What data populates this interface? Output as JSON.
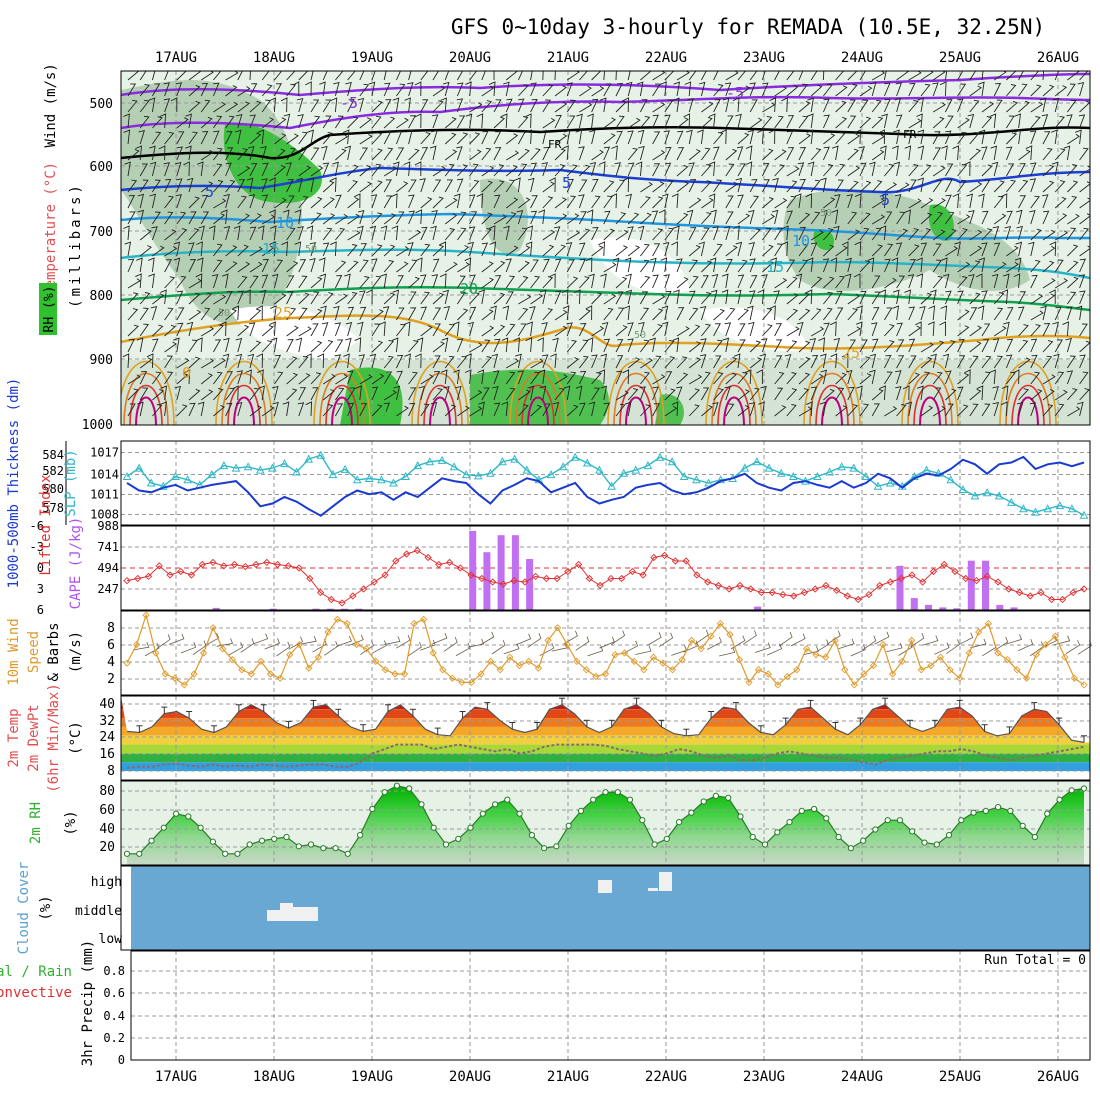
{
  "title": "GFS 0~10day 3-hourly for REMADA (10.5E, 32.25N)",
  "dates": [
    "17AUG",
    "18AUG",
    "19AUG",
    "20AUG",
    "21AUG",
    "22AUG",
    "23AUG",
    "24AUG",
    "25AUG",
    "26AUG"
  ],
  "colors": {
    "purple": "#8a2be2",
    "blue": "#1c3fd6",
    "cyan": "#28b4c8",
    "green": "#10a050",
    "orange": "#e0a020",
    "red": "#e03030",
    "magenta": "#c00080",
    "rh_light": "#e6f2e6",
    "rh_mid": "#a8c8a8",
    "rh_green": "#40c040",
    "cloud": "#6aa8d4",
    "cape": "#c070f0",
    "slp": "#30b8c8",
    "thick": "#1a3ad0",
    "li": "#e03030",
    "wind": "#e09a2a"
  },
  "panels": {
    "upper": {
      "ylabel_wind": "Wind (m/s)",
      "ylabel_temp": "Temperature (°C)",
      "ylabel_rh": "RH (%)",
      "ylabel_mb": "(millibars)",
      "levels": [
        "500",
        "600",
        "700",
        "800",
        "900",
        "1000"
      ],
      "contour_labels": [
        "-5",
        "-5",
        "FR",
        "FR",
        "5",
        "5",
        "5",
        "10",
        "10",
        "15",
        "15",
        "20",
        "25",
        "25",
        "0",
        "0",
        "50",
        "50",
        "50",
        "50"
      ]
    },
    "slp": {
      "ylabel_thick": "1000-500mb Thickness (dm)",
      "ylabel_slp": "SLP (mb)",
      "left_ticks": [
        "584",
        "582",
        "580",
        "578"
      ],
      "right_ticks": [
        "1017",
        "1014",
        "1011",
        "1008"
      ]
    },
    "cape": {
      "ylabel_li": "Lifted Index",
      "ylabel_cape": "CAPE (J/kg)",
      "li_ticks": [
        "-6",
        "-3",
        "0",
        "3",
        "6"
      ],
      "cape_ticks": [
        "988",
        "741",
        "494",
        "247"
      ]
    },
    "wind": {
      "ylabel": "10m Wind Speed & Barbs (m/s)",
      "ylabel_a": "10m Wind",
      "ylabel_b": "Speed",
      "ylabel_c": "& Barbs",
      "ylabel_d": "(m/s)",
      "ticks": [
        "8",
        "6",
        "4",
        "2"
      ]
    },
    "temp": {
      "ylabel_a": "2m Temp",
      "ylabel_b": "2m DewPt",
      "ylabel_c": "(6hr Min/Max)",
      "ylabel_d": "(°C)",
      "ticks": [
        "40",
        "32",
        "24",
        "16",
        "8"
      ]
    },
    "rh": {
      "ylabel_a": "2m RH",
      "ylabel_b": "(%)",
      "ticks": [
        "80",
        "60",
        "40",
        "20"
      ]
    },
    "cloud": {
      "ylabel_a": "Cloud Cover",
      "ylabel_b": "(%)",
      "ticks": [
        "high",
        "middle",
        "low"
      ]
    },
    "precip": {
      "ylabel_a": "Total / Rain",
      "ylabel_b": "Convective",
      "ylabel_c": "3hr Precip (mm)",
      "ticks": [
        "0.8",
        "0.6",
        "0.4",
        "0.2",
        "0"
      ],
      "run_total": "Run Total = 0"
    }
  },
  "chart_data": [
    {
      "type": "line",
      "title": "1000-500mb Thickness (dm) / SLP (mb)",
      "series": [
        {
          "name": "SLP (mb)",
          "axis": "right",
          "ylim": [
            1006,
            1019
          ],
          "values": [
            1013.5,
            1014.8,
            1012.5,
            1012.0,
            1013.5,
            1013.0,
            1012.2,
            1013.8,
            1015.2,
            1014.8,
            1015.0,
            1014.5,
            1014.8,
            1015.5,
            1014.2,
            1016.2,
            1016.8,
            1013.8,
            1014.6,
            1013.0,
            1013.2,
            1013.0,
            1012.5,
            1013.5,
            1015.2,
            1015.8,
            1016.0,
            1015.0,
            1013.8,
            1013.6,
            1014.0,
            1015.8,
            1016.2,
            1014.5,
            1013.0,
            1013.8,
            1015.0,
            1016.5,
            1015.6,
            1014.5,
            1012.0,
            1014.0,
            1014.5,
            1015.2,
            1016.5,
            1015.8,
            1013.5,
            1013.0,
            1012.5,
            1013.0,
            1013.2,
            1014.8,
            1015.8,
            1014.8,
            1014.0,
            1013.5,
            1012.8,
            1013.5,
            1014.2,
            1015.0,
            1014.8,
            1013.5,
            1012.0,
            1012.5,
            1012.0,
            1013.5,
            1014.5,
            1014.0,
            1013.0,
            1011.5,
            1010.5,
            1011.0,
            1010.5,
            1009.5,
            1008.5,
            1008.0,
            1008.5,
            1009.0,
            1008.5,
            1007.5
          ]
        },
        {
          "name": "1000-500mb Thickness (dm)",
          "axis": "left",
          "ylim": [
            576.5,
            585.5
          ],
          "values": [
            581.0,
            580.2,
            580.0,
            580.5,
            580.8,
            580.2,
            580.5,
            580.8,
            581.0,
            581.2,
            580.0,
            578.5,
            578.8,
            579.5,
            579.0,
            578.2,
            577.5,
            578.5,
            579.5,
            580.2,
            579.8,
            580.0,
            579.2,
            580.0,
            579.5,
            580.5,
            581.5,
            581.2,
            581.0,
            579.8,
            578.8,
            580.2,
            580.8,
            581.5,
            581.2,
            580.0,
            580.5,
            581.0,
            579.5,
            578.8,
            579.2,
            579.5,
            580.5,
            580.8,
            581.0,
            580.2,
            579.8,
            580.0,
            580.5,
            581.2,
            581.5,
            582.0,
            581.0,
            580.5,
            580.2,
            581.0,
            581.2,
            580.8,
            580.5,
            581.2,
            580.5,
            581.0,
            582.0,
            581.5,
            580.5,
            581.5,
            582.0,
            581.8,
            582.5,
            583.5,
            583.0,
            582.0,
            583.0,
            583.2,
            583.8,
            582.5,
            583.0,
            583.2,
            582.8,
            583.2
          ]
        }
      ]
    },
    {
      "type": "bar",
      "title": "Lifted Index / CAPE (J/kg)",
      "li_ylim": [
        6,
        -6
      ],
      "cape_ylim": [
        0,
        988
      ],
      "li_values": [
        1.8,
        1.5,
        1.2,
        -0.3,
        1.0,
        0.5,
        1.0,
        -0.5,
        -0.8,
        -0.3,
        -0.5,
        -0.2,
        -0.5,
        -0.8,
        -0.5,
        -0.3,
        0.0,
        1.5,
        3.5,
        4.5,
        5.0,
        4.0,
        3.0,
        2.0,
        1.0,
        -1.0,
        -2.0,
        -2.5,
        -1.5,
        -0.5,
        -0.8,
        0.0,
        1.0,
        1.5,
        2.0,
        2.3,
        1.8,
        2.0,
        1.2,
        1.5,
        1.5,
        0.5,
        -0.5,
        1.5,
        2.5,
        1.5,
        1.5,
        0.5,
        1.0,
        -1.5,
        -1.8,
        -1.0,
        -1.0,
        1.0,
        2.0,
        2.5,
        3.0,
        2.5,
        3.0,
        3.5,
        3.5,
        3.8,
        4.0,
        3.5,
        3.0,
        2.5,
        3.2,
        4.0,
        4.5,
        3.8,
        2.5,
        2.0,
        1.5,
        1.0,
        2.0,
        0.5,
        -0.5,
        0.5,
        1.5,
        1.8,
        1.2,
        2.0,
        3.0,
        3.5,
        4.0,
        3.5,
        4.5,
        4.5,
        3.5,
        3.0
      ],
      "cape_values": [
        0,
        0,
        0,
        0,
        0,
        25,
        0,
        0,
        0,
        15,
        0,
        0,
        15,
        15,
        15,
        15,
        0,
        0,
        0,
        0,
        0,
        0,
        0,
        930,
        680,
        880,
        880,
        600,
        0,
        0,
        0,
        0,
        0,
        0,
        0,
        0,
        0,
        0,
        0,
        0,
        0,
        0,
        0,
        40,
        0,
        0,
        0,
        0,
        0,
        0,
        0,
        0,
        0,
        520,
        140,
        60,
        30,
        20,
        580,
        580,
        60,
        30
      ]
    },
    {
      "type": "line",
      "title": "10m Wind Speed & Barbs (m/s)",
      "ylim": [
        0,
        10
      ],
      "values": [
        3.8,
        6.0,
        9.5,
        5.0,
        2.5,
        2.0,
        1.2,
        2.5,
        5.0,
        8.0,
        5.5,
        4.2,
        3.0,
        2.5,
        4.0,
        2.5,
        2.0,
        4.8,
        6.0,
        3.2,
        4.5,
        7.5,
        9.0,
        8.5,
        6.0,
        5.5,
        4.0,
        3.0,
        2.5,
        2.5,
        8.5,
        9.0,
        5.0,
        3.0,
        2.0,
        1.5,
        1.5,
        2.5,
        4.0,
        3.0,
        4.5,
        3.5,
        4.0,
        3.2,
        6.5,
        8.0,
        6.0,
        4.0,
        3.0,
        2.2,
        2.5,
        4.8,
        5.0,
        4.0,
        3.0,
        4.5,
        3.8,
        3.0,
        4.2,
        6.5,
        5.5,
        7.0,
        8.5,
        7.2,
        4.2,
        1.5,
        3.0,
        2.5,
        1.2,
        2.2,
        3.0,
        5.5,
        4.8,
        4.5,
        6.5,
        3.0,
        1.2,
        2.5,
        3.5,
        6.0,
        2.5,
        4.0,
        6.5,
        3.0,
        3.5,
        4.5,
        3.0,
        2.0,
        5.0,
        7.5,
        8.5,
        5.0,
        4.2,
        3.0,
        2.0,
        4.8,
        6.0,
        7.0,
        4.5,
        2.0,
        1.2
      ]
    },
    {
      "type": "area",
      "title": "2m Temp / 2m DewPt (6hr Min/Max) (°C)",
      "ylim": [
        4,
        42
      ],
      "temp": [
        26,
        25.5,
        28,
        34,
        35,
        32,
        27,
        25.5,
        28,
        35,
        38,
        35,
        30,
        27.5,
        30,
        37,
        38,
        33,
        28,
        26,
        27,
        35,
        38,
        33,
        27,
        24.5,
        24,
        32,
        37,
        36,
        31,
        27,
        25.5,
        27,
        36,
        38,
        34,
        28,
        25.5,
        28,
        36,
        38,
        34,
        28,
        25,
        24,
        24.5,
        32,
        37,
        36,
        30,
        25.5,
        24.5,
        29,
        36,
        37,
        32,
        27,
        24.5,
        29,
        36,
        38,
        33,
        28,
        26,
        28,
        36,
        37,
        33,
        26,
        24,
        25,
        33,
        36,
        35,
        29,
        22,
        21
      ],
      "dewpt": [
        9.5,
        10,
        10,
        11,
        11.5,
        10.5,
        10,
        11,
        10,
        10.5,
        10,
        11,
        10.5,
        10,
        10.5,
        11,
        11,
        10,
        10,
        12,
        16,
        18,
        20,
        20,
        20,
        18,
        19,
        20,
        19,
        18,
        17,
        18,
        16,
        17,
        19,
        20,
        20,
        20,
        20,
        19.5,
        18,
        17,
        16,
        15,
        16,
        18,
        17,
        15,
        14,
        15,
        13,
        13,
        14,
        16,
        17,
        16,
        15,
        14,
        14,
        13,
        12,
        11,
        13,
        14,
        15,
        16,
        17,
        17,
        18,
        17,
        15,
        14,
        13,
        14,
        15,
        16,
        17,
        18,
        19
      ]
    },
    {
      "type": "area",
      "title": "2m RH (%)",
      "ylim": [
        0,
        90
      ],
      "values": [
        12,
        12,
        26,
        40,
        55,
        52,
        40,
        25,
        12,
        12,
        22,
        26,
        28,
        30,
        20,
        22,
        18,
        18,
        12,
        32,
        60,
        78,
        85,
        82,
        65,
        40,
        22,
        28,
        40,
        55,
        65,
        70,
        55,
        32,
        18,
        20,
        42,
        58,
        70,
        78,
        78,
        70,
        48,
        22,
        28,
        46,
        56,
        68,
        74,
        72,
        52,
        30,
        22,
        35,
        46,
        58,
        60,
        50,
        30,
        18,
        26,
        38,
        48,
        48,
        36,
        24,
        22,
        32,
        48,
        56,
        58,
        62,
        58,
        42,
        30,
        55,
        70,
        80,
        82
      ]
    },
    {
      "type": "bar",
      "title": "Cloud Cover (%)",
      "levels": [
        "high",
        "middle",
        "low"
      ],
      "middle_cloud_days": [
        "18AUG"
      ],
      "high_cloud_days": [
        "21AUG",
        "22AUG"
      ]
    },
    {
      "type": "bar",
      "title": "3hr Precip (mm)",
      "ylim": [
        0,
        1.0
      ],
      "values": [],
      "run_total": 0
    }
  ]
}
